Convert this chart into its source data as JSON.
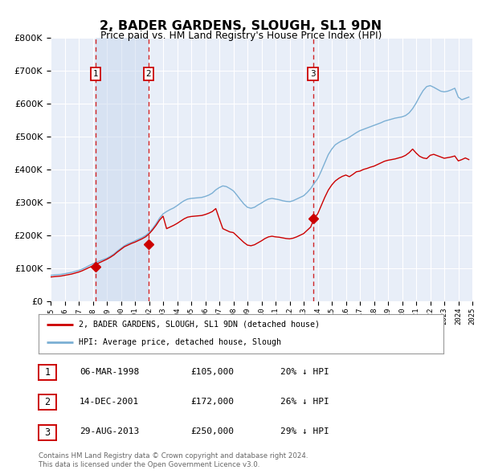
{
  "title": "2, BADER GARDENS, SLOUGH, SL1 9DN",
  "subtitle": "Price paid vs. HM Land Registry's House Price Index (HPI)",
  "background_color": "#ffffff",
  "plot_bg_color": "#e8eef8",
  "grid_color": "#ffffff",
  "transaction_color": "#cc0000",
  "hpi_color": "#7bafd4",
  "purchases": [
    {
      "label": "1",
      "date": 1998.19,
      "price": 105000
    },
    {
      "label": "2",
      "date": 2001.96,
      "price": 172000
    },
    {
      "label": "3",
      "date": 2013.66,
      "price": 250000
    }
  ],
  "legend_label_red": "2, BADER GARDENS, SLOUGH, SL1 9DN (detached house)",
  "legend_label_blue": "HPI: Average price, detached house, Slough",
  "footer_line1": "Contains HM Land Registry data © Crown copyright and database right 2024.",
  "footer_line2": "This data is licensed under the Open Government Licence v3.0.",
  "table_rows": [
    [
      "1",
      "06-MAR-1998",
      "£105,000",
      "20% ↓ HPI"
    ],
    [
      "2",
      "14-DEC-2001",
      "£172,000",
      "26% ↓ HPI"
    ],
    [
      "3",
      "29-AUG-2013",
      "£250,000",
      "29% ↓ HPI"
    ]
  ],
  "hpi_years": [
    1995.0,
    1995.25,
    1995.5,
    1995.75,
    1996.0,
    1996.25,
    1996.5,
    1996.75,
    1997.0,
    1997.25,
    1997.5,
    1997.75,
    1998.0,
    1998.25,
    1998.5,
    1998.75,
    1999.0,
    1999.25,
    1999.5,
    1999.75,
    2000.0,
    2000.25,
    2000.5,
    2000.75,
    2001.0,
    2001.25,
    2001.5,
    2001.75,
    2002.0,
    2002.25,
    2002.5,
    2002.75,
    2003.0,
    2003.25,
    2003.5,
    2003.75,
    2004.0,
    2004.25,
    2004.5,
    2004.75,
    2005.0,
    2005.25,
    2005.5,
    2005.75,
    2006.0,
    2006.25,
    2006.5,
    2006.75,
    2007.0,
    2007.25,
    2007.5,
    2007.75,
    2008.0,
    2008.25,
    2008.5,
    2008.75,
    2009.0,
    2009.25,
    2009.5,
    2009.75,
    2010.0,
    2010.25,
    2010.5,
    2010.75,
    2011.0,
    2011.25,
    2011.5,
    2011.75,
    2012.0,
    2012.25,
    2012.5,
    2012.75,
    2013.0,
    2013.25,
    2013.5,
    2013.75,
    2014.0,
    2014.25,
    2014.5,
    2014.75,
    2015.0,
    2015.25,
    2015.5,
    2015.75,
    2016.0,
    2016.25,
    2016.5,
    2016.75,
    2017.0,
    2017.25,
    2017.5,
    2017.75,
    2018.0,
    2018.25,
    2018.5,
    2018.75,
    2019.0,
    2019.25,
    2019.5,
    2019.75,
    2020.0,
    2020.25,
    2020.5,
    2020.75,
    2021.0,
    2021.25,
    2021.5,
    2021.75,
    2022.0,
    2022.25,
    2022.5,
    2022.75,
    2023.0,
    2023.25,
    2023.5,
    2023.75,
    2024.0,
    2024.25,
    2024.5,
    2024.75
  ],
  "hpi_vals": [
    78000,
    79000,
    80000,
    81000,
    83000,
    85000,
    87000,
    90000,
    93000,
    97000,
    102000,
    108000,
    113000,
    118000,
    122000,
    126000,
    130000,
    136000,
    143000,
    152000,
    160000,
    168000,
    174000,
    178000,
    183000,
    188000,
    193000,
    199000,
    208000,
    220000,
    235000,
    252000,
    265000,
    272000,
    278000,
    283000,
    290000,
    298000,
    305000,
    310000,
    312000,
    313000,
    314000,
    315000,
    318000,
    322000,
    328000,
    338000,
    345000,
    350000,
    348000,
    342000,
    335000,
    322000,
    308000,
    295000,
    285000,
    282000,
    285000,
    292000,
    298000,
    305000,
    310000,
    312000,
    310000,
    308000,
    305000,
    303000,
    302000,
    305000,
    310000,
    315000,
    320000,
    330000,
    342000,
    358000,
    372000,
    395000,
    420000,
    445000,
    462000,
    475000,
    482000,
    488000,
    492000,
    498000,
    505000,
    512000,
    518000,
    522000,
    526000,
    530000,
    534000,
    538000,
    542000,
    547000,
    550000,
    553000,
    556000,
    558000,
    560000,
    564000,
    572000,
    585000,
    602000,
    622000,
    640000,
    652000,
    655000,
    650000,
    644000,
    638000,
    636000,
    638000,
    642000,
    647000,
    620000,
    612000,
    616000,
    620000
  ],
  "prop_years": [
    1995.0,
    1995.25,
    1995.5,
    1995.75,
    1996.0,
    1996.25,
    1996.5,
    1996.75,
    1997.0,
    1997.25,
    1997.5,
    1997.75,
    1998.0,
    1998.25,
    1998.5,
    1998.75,
    1999.0,
    1999.25,
    1999.5,
    1999.75,
    2000.0,
    2000.25,
    2000.5,
    2000.75,
    2001.0,
    2001.25,
    2001.5,
    2001.75,
    2002.0,
    2002.25,
    2002.5,
    2002.75,
    2003.0,
    2003.25,
    2003.5,
    2003.75,
    2004.0,
    2004.25,
    2004.5,
    2004.75,
    2005.0,
    2005.25,
    2005.5,
    2005.75,
    2006.0,
    2006.25,
    2006.5,
    2006.75,
    2007.0,
    2007.25,
    2007.5,
    2007.75,
    2008.0,
    2008.25,
    2008.5,
    2008.75,
    2009.0,
    2009.25,
    2009.5,
    2009.75,
    2010.0,
    2010.25,
    2010.5,
    2010.75,
    2011.0,
    2011.25,
    2011.5,
    2011.75,
    2012.0,
    2012.25,
    2012.5,
    2012.75,
    2013.0,
    2013.25,
    2013.5,
    2013.75,
    2014.0,
    2014.25,
    2014.5,
    2014.75,
    2015.0,
    2015.25,
    2015.5,
    2015.75,
    2016.0,
    2016.25,
    2016.5,
    2016.75,
    2017.0,
    2017.25,
    2017.5,
    2017.75,
    2018.0,
    2018.25,
    2018.5,
    2018.75,
    2019.0,
    2019.25,
    2019.5,
    2019.75,
    2020.0,
    2020.25,
    2020.5,
    2020.75,
    2021.0,
    2021.25,
    2021.5,
    2021.75,
    2022.0,
    2022.25,
    2022.5,
    2022.75,
    2023.0,
    2023.25,
    2023.5,
    2023.75,
    2024.0,
    2024.25,
    2024.5,
    2024.75
  ],
  "prop_vals": [
    73000,
    74000,
    75000,
    76000,
    78000,
    80000,
    82000,
    85000,
    88000,
    92000,
    97000,
    102000,
    107000,
    112000,
    117000,
    122000,
    127000,
    133000,
    140000,
    149000,
    157000,
    165000,
    170000,
    175000,
    179000,
    184000,
    189000,
    195000,
    204000,
    216000,
    230000,
    246000,
    258000,
    220000,
    225000,
    230000,
    236000,
    243000,
    250000,
    255000,
    257000,
    258000,
    259000,
    260000,
    263000,
    267000,
    272000,
    281000,
    250000,
    220000,
    215000,
    210000,
    208000,
    198000,
    188000,
    178000,
    170000,
    168000,
    171000,
    177000,
    183000,
    190000,
    195000,
    197000,
    195000,
    194000,
    192000,
    190000,
    189000,
    191000,
    195000,
    200000,
    205000,
    215000,
    225000,
    252000,
    265000,
    290000,
    315000,
    337000,
    353000,
    365000,
    373000,
    379000,
    383000,
    378000,
    385000,
    393000,
    395000,
    400000,
    403000,
    407000,
    410000,
    415000,
    420000,
    425000,
    428000,
    430000,
    432000,
    435000,
    438000,
    443000,
    451000,
    462000,
    450000,
    440000,
    435000,
    433000,
    443000,
    446000,
    442000,
    438000,
    434000,
    436000,
    438000,
    441000,
    426000,
    430000,
    435000,
    430000
  ]
}
